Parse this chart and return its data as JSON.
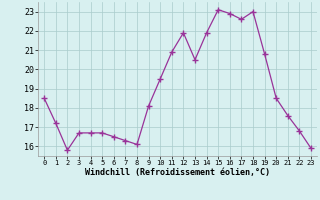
{
  "x": [
    0,
    1,
    2,
    3,
    4,
    5,
    6,
    7,
    8,
    9,
    10,
    11,
    12,
    13,
    14,
    15,
    16,
    17,
    18,
    19,
    20,
    21,
    22,
    23
  ],
  "y": [
    18.5,
    17.2,
    15.8,
    16.7,
    16.7,
    16.7,
    16.5,
    16.3,
    16.1,
    18.1,
    19.5,
    20.9,
    21.9,
    20.5,
    21.9,
    23.1,
    22.9,
    22.6,
    23.0,
    20.8,
    18.5,
    17.6,
    16.8,
    15.9
  ],
  "line_color": "#993399",
  "marker": "+",
  "marker_size": 4,
  "bg_color": "#d8f0f0",
  "grid_color": "#aacccc",
  "xlabel": "Windchill (Refroidissement éolien,°C)",
  "ylabel_ticks": [
    16,
    17,
    18,
    19,
    20,
    21,
    22,
    23
  ],
  "xlim": [
    -0.5,
    23.5
  ],
  "ylim": [
    15.5,
    23.5
  ],
  "xtick_labels": [
    "0",
    "1",
    "2",
    "3",
    "4",
    "5",
    "6",
    "7",
    "8",
    "9",
    "10",
    "11",
    "12",
    "13",
    "14",
    "15",
    "16",
    "17",
    "18",
    "19",
    "20",
    "21",
    "22",
    "23"
  ]
}
